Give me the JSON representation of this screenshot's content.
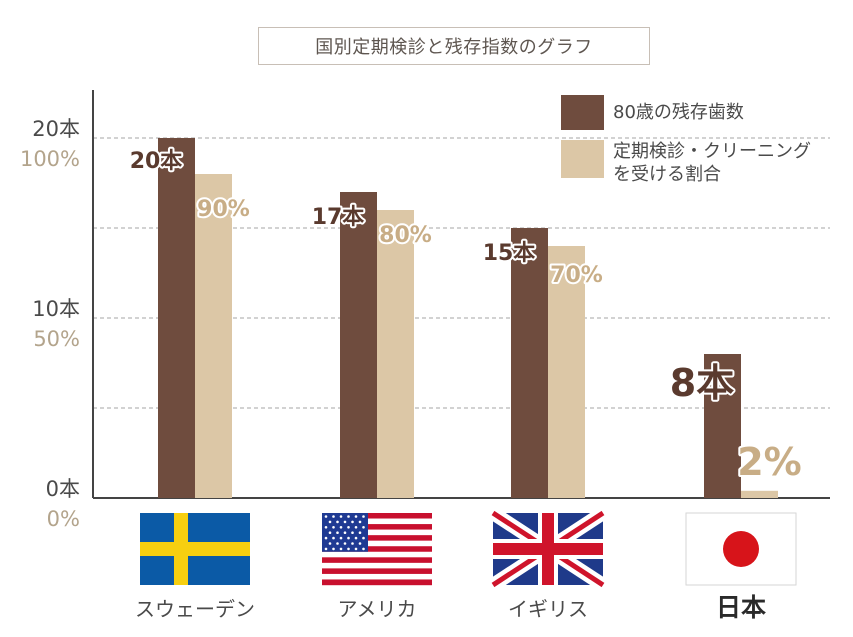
{
  "chart_data": {
    "type": "bar",
    "title": "国別定期検診と残存指数のグラフ",
    "categories": [
      "スウェーデン",
      "アメリカ",
      "イギリス",
      "日本"
    ],
    "series": [
      {
        "name": "80歳の残存歯数",
        "unit": "本",
        "values": [
          20,
          17,
          15,
          8
        ],
        "labels": [
          "20本",
          "17本",
          "15本",
          "8本"
        ],
        "color": "#6f4c3e"
      },
      {
        "name_lines": [
          "定期検診・クリーニング",
          "を受ける割合"
        ],
        "unit": "%",
        "values": [
          90,
          80,
          70,
          2
        ],
        "labels": [
          "90%",
          "80%",
          "70%",
          "2%"
        ],
        "color": "#dcc7a6"
      }
    ],
    "y_axis_left": {
      "range": [
        0,
        20
      ],
      "ticks": [
        0,
        10,
        20
      ],
      "tick_labels": [
        "0本",
        "10本",
        "20本"
      ],
      "color": "#4a4a4a"
    },
    "y_axis_right_scale": {
      "range": [
        0,
        100
      ],
      "ticks": [
        0,
        50,
        100
      ],
      "tick_labels": [
        "0%",
        "50%",
        "100%"
      ],
      "color": "#b3a48c"
    },
    "grid": true,
    "grid_style": "dashed",
    "legend_position": "top-right",
    "flags": [
      "sweden-flag",
      "usa-flag",
      "uk-flag",
      "japan-flag"
    ]
  }
}
